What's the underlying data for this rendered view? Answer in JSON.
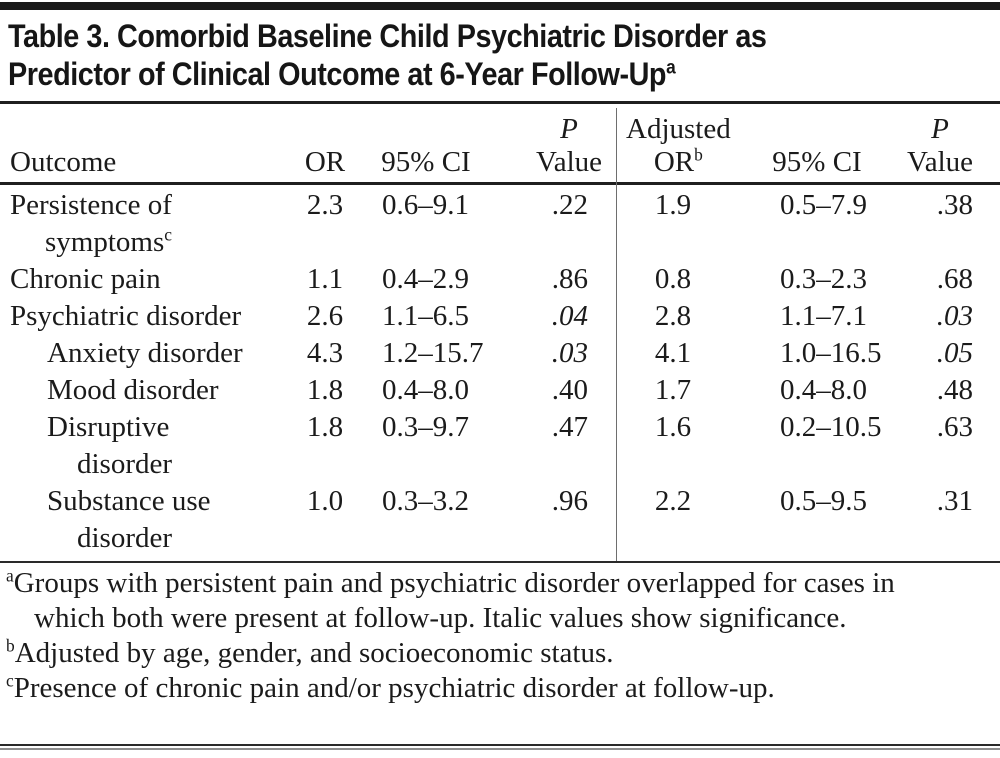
{
  "title": {
    "line1": "Table 3. Comorbid Baseline Child Psychiatric Disorder as",
    "line2": "Predictor of Clinical Outcome at 6-Year Follow-Up",
    "superscript": "a"
  },
  "header": {
    "outcome": "Outcome",
    "or": "OR",
    "ci": "95% CI",
    "p_line1": "P",
    "p_line2": "Value",
    "adj_line1": "Adjusted",
    "adj_line2": "OR",
    "adj_sup": "b",
    "ci2": "95% CI",
    "p2_line1": "P",
    "p2_line2": "Value"
  },
  "rows": [
    {
      "label1": "Persistence of",
      "label2": "symptoms",
      "label2_sup": "c",
      "indent": false,
      "or": "2.3",
      "ci": "0.6–9.1",
      "p": ".22",
      "p_italic": false,
      "adj_or": "1.9",
      "adj_ci": "0.5–7.9",
      "adj_p": ".38",
      "adj_p_italic": false
    },
    {
      "label1": "Chronic pain",
      "indent": false,
      "or": "1.1",
      "ci": "0.4–2.9",
      "p": ".86",
      "p_italic": false,
      "adj_or": "0.8",
      "adj_ci": "0.3–2.3",
      "adj_p": ".68",
      "adj_p_italic": false
    },
    {
      "label1": "Psychiatric disorder",
      "indent": false,
      "or": "2.6",
      "ci": "1.1–6.5",
      "p": ".04",
      "p_italic": true,
      "adj_or": "2.8",
      "adj_ci": "1.1–7.1",
      "adj_p": ".03",
      "adj_p_italic": true
    },
    {
      "label1": "Anxiety disorder",
      "indent": true,
      "or": "4.3",
      "ci": "1.2–15.7",
      "p": ".03",
      "p_italic": true,
      "adj_or": "4.1",
      "adj_ci": "1.0–16.5",
      "adj_p": ".05",
      "adj_p_italic": true
    },
    {
      "label1": "Mood disorder",
      "indent": true,
      "or": "1.8",
      "ci": "0.4–8.0",
      "p": ".40",
      "p_italic": false,
      "adj_or": "1.7",
      "adj_ci": "0.4–8.0",
      "adj_p": ".48",
      "adj_p_italic": false
    },
    {
      "label1": "Disruptive",
      "label2": "disorder",
      "indent": true,
      "or": "1.8",
      "ci": "0.3–9.7",
      "p": ".47",
      "p_italic": false,
      "adj_or": "1.6",
      "adj_ci": "0.2–10.5",
      "adj_p": ".63",
      "adj_p_italic": false
    },
    {
      "label1": "Substance use",
      "label2": "disorder",
      "indent": true,
      "or": "1.0",
      "ci": "0.3–3.2",
      "p": ".96",
      "p_italic": false,
      "adj_or": "2.2",
      "adj_ci": "0.5–9.5",
      "adj_p": ".31",
      "adj_p_italic": false
    }
  ],
  "footnotes": [
    {
      "marker": "a",
      "text": "Groups with persistent pain and psychiatric disorder overlapped for cases in which both were present at follow-up. Italic values show significance."
    },
    {
      "marker": "b",
      "text": "Adjusted by age, gender, and socioeconomic status."
    },
    {
      "marker": "c",
      "text": "Presence of chronic pain and/or psychiatric disorder at follow-up."
    }
  ],
  "colors": {
    "text": "#1b1b1b",
    "rule": "#1f1f1f",
    "divider": "#6e6e6e",
    "background": "#ffffff"
  }
}
